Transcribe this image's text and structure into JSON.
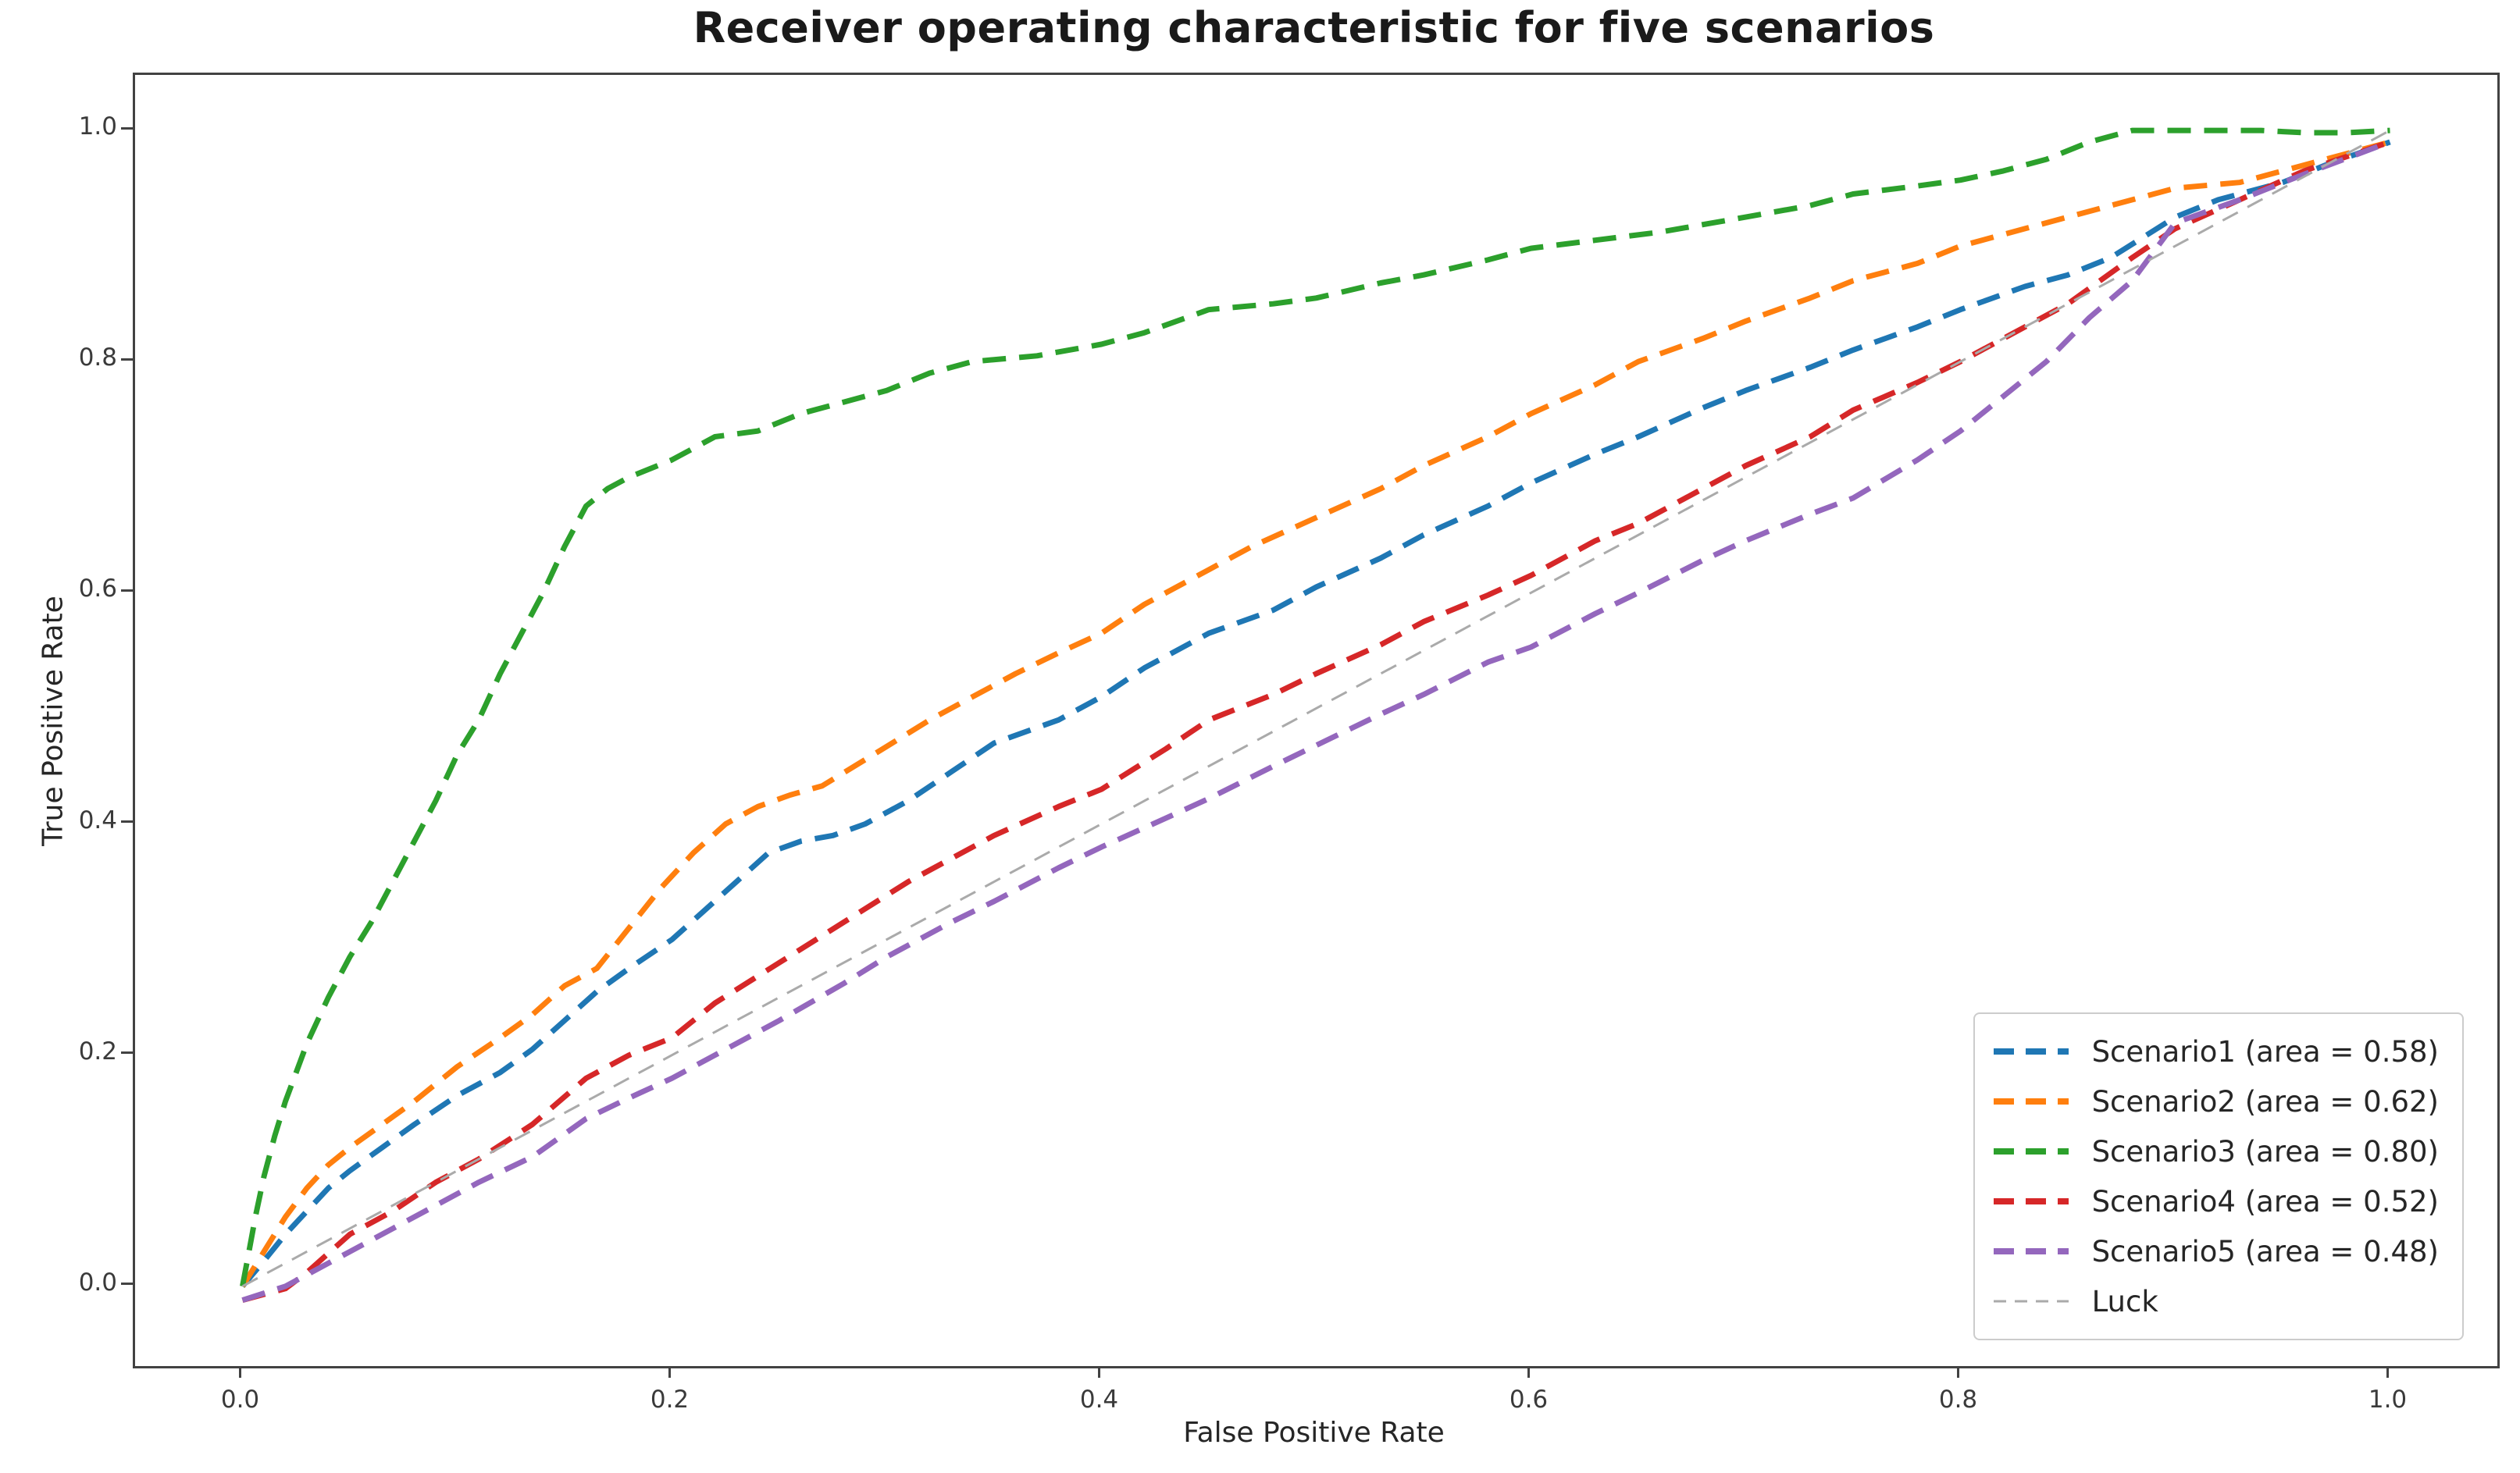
{
  "chart_data": {
    "type": "line",
    "title": "Receiver operating characteristic for five scenarios",
    "xlabel": "False Positive Rate",
    "ylabel": "True Positive Rate",
    "xlim": [
      -0.05,
      1.05
    ],
    "ylim": [
      -0.069,
      1.048
    ],
    "grid": false,
    "legend_position": "lower right",
    "x_ticks": {
      "values": [
        0.0,
        0.2,
        0.4,
        0.6,
        0.8,
        1.0
      ],
      "labels": [
        "0.0",
        "0.2",
        "0.4",
        "0.6",
        "0.8",
        "1.0"
      ]
    },
    "y_ticks": {
      "values": [
        0.0,
        0.2,
        0.4,
        0.6,
        0.8,
        1.0
      ],
      "labels": [
        "0.0",
        "0.2",
        "0.4",
        "0.6",
        "0.8",
        "1.0"
      ]
    },
    "series": [
      {
        "name": "Scenario1 (area = 0.58)",
        "area": 0.58,
        "color": "#1f77b4",
        "line_width": 7,
        "dash": "30 17",
        "sample_dash": "26 15",
        "sample_width": 8,
        "points": [
          [
            0,
            0
          ],
          [
            0.01,
            0.022
          ],
          [
            0.02,
            0.045
          ],
          [
            0.03,
            0.065
          ],
          [
            0.04,
            0.085
          ],
          [
            0.05,
            0.1
          ],
          [
            0.065,
            0.12
          ],
          [
            0.08,
            0.14
          ],
          [
            0.1,
            0.165
          ],
          [
            0.12,
            0.185
          ],
          [
            0.135,
            0.205
          ],
          [
            0.15,
            0.23
          ],
          [
            0.165,
            0.255
          ],
          [
            0.18,
            0.275
          ],
          [
            0.2,
            0.3
          ],
          [
            0.215,
            0.325
          ],
          [
            0.23,
            0.35
          ],
          [
            0.245,
            0.375
          ],
          [
            0.26,
            0.385
          ],
          [
            0.275,
            0.39
          ],
          [
            0.29,
            0.4
          ],
          [
            0.31,
            0.42
          ],
          [
            0.33,
            0.445
          ],
          [
            0.35,
            0.47
          ],
          [
            0.38,
            0.49
          ],
          [
            0.4,
            0.51
          ],
          [
            0.42,
            0.535
          ],
          [
            0.45,
            0.565
          ],
          [
            0.48,
            0.585
          ],
          [
            0.5,
            0.605
          ],
          [
            0.53,
            0.63
          ],
          [
            0.55,
            0.65
          ],
          [
            0.58,
            0.675
          ],
          [
            0.6,
            0.695
          ],
          [
            0.63,
            0.72
          ],
          [
            0.65,
            0.735
          ],
          [
            0.68,
            0.76
          ],
          [
            0.7,
            0.775
          ],
          [
            0.73,
            0.795
          ],
          [
            0.75,
            0.81
          ],
          [
            0.78,
            0.83
          ],
          [
            0.8,
            0.845
          ],
          [
            0.83,
            0.865
          ],
          [
            0.85,
            0.875
          ],
          [
            0.87,
            0.89
          ],
          [
            0.9,
            0.925
          ],
          [
            0.92,
            0.94
          ],
          [
            0.95,
            0.955
          ],
          [
            0.97,
            0.97
          ],
          [
            1,
            0.99
          ]
        ]
      },
      {
        "name": "Scenario2 (area = 0.62)",
        "area": 0.62,
        "color": "#ff7f0e",
        "line_width": 7,
        "dash": "30 17",
        "sample_dash": "26 15",
        "sample_width": 8,
        "points": [
          [
            0,
            0
          ],
          [
            0.01,
            0.03
          ],
          [
            0.02,
            0.06
          ],
          [
            0.03,
            0.085
          ],
          [
            0.04,
            0.105
          ],
          [
            0.05,
            0.12
          ],
          [
            0.065,
            0.14
          ],
          [
            0.08,
            0.16
          ],
          [
            0.1,
            0.19
          ],
          [
            0.12,
            0.215
          ],
          [
            0.135,
            0.235
          ],
          [
            0.15,
            0.26
          ],
          [
            0.165,
            0.275
          ],
          [
            0.18,
            0.31
          ],
          [
            0.195,
            0.345
          ],
          [
            0.21,
            0.375
          ],
          [
            0.225,
            0.4
          ],
          [
            0.24,
            0.415
          ],
          [
            0.255,
            0.425
          ],
          [
            0.27,
            0.433
          ],
          [
            0.285,
            0.45
          ],
          [
            0.3,
            0.467
          ],
          [
            0.32,
            0.49
          ],
          [
            0.34,
            0.51
          ],
          [
            0.36,
            0.53
          ],
          [
            0.38,
            0.548
          ],
          [
            0.4,
            0.565
          ],
          [
            0.42,
            0.59
          ],
          [
            0.45,
            0.62
          ],
          [
            0.47,
            0.64
          ],
          [
            0.5,
            0.665
          ],
          [
            0.53,
            0.69
          ],
          [
            0.55,
            0.71
          ],
          [
            0.58,
            0.735
          ],
          [
            0.6,
            0.755
          ],
          [
            0.63,
            0.78
          ],
          [
            0.65,
            0.8
          ],
          [
            0.68,
            0.82
          ],
          [
            0.7,
            0.835
          ],
          [
            0.73,
            0.855
          ],
          [
            0.75,
            0.87
          ],
          [
            0.78,
            0.885
          ],
          [
            0.8,
            0.9
          ],
          [
            0.83,
            0.915
          ],
          [
            0.85,
            0.925
          ],
          [
            0.88,
            0.94
          ],
          [
            0.9,
            0.95
          ],
          [
            0.93,
            0.955
          ],
          [
            0.96,
            0.97
          ],
          [
            1,
            0.99
          ]
        ]
      },
      {
        "name": "Scenario3 (area = 0.80)",
        "area": 0.8,
        "color": "#2ca02c",
        "line_width": 7,
        "dash": "30 17",
        "sample_dash": "26 15",
        "sample_width": 8,
        "points": [
          [
            0,
            0
          ],
          [
            0.003,
            0.03
          ],
          [
            0.006,
            0.06
          ],
          [
            0.01,
            0.095
          ],
          [
            0.015,
            0.13
          ],
          [
            0.02,
            0.16
          ],
          [
            0.03,
            0.21
          ],
          [
            0.04,
            0.25
          ],
          [
            0.05,
            0.285
          ],
          [
            0.06,
            0.315
          ],
          [
            0.07,
            0.35
          ],
          [
            0.08,
            0.385
          ],
          [
            0.09,
            0.42
          ],
          [
            0.1,
            0.46
          ],
          [
            0.11,
            0.49
          ],
          [
            0.12,
            0.53
          ],
          [
            0.13,
            0.565
          ],
          [
            0.14,
            0.6
          ],
          [
            0.15,
            0.64
          ],
          [
            0.16,
            0.675
          ],
          [
            0.17,
            0.69
          ],
          [
            0.18,
            0.7
          ],
          [
            0.2,
            0.715
          ],
          [
            0.22,
            0.735
          ],
          [
            0.24,
            0.74
          ],
          [
            0.26,
            0.755
          ],
          [
            0.28,
            0.765
          ],
          [
            0.3,
            0.775
          ],
          [
            0.32,
            0.79
          ],
          [
            0.34,
            0.8
          ],
          [
            0.37,
            0.805
          ],
          [
            0.4,
            0.815
          ],
          [
            0.42,
            0.825
          ],
          [
            0.45,
            0.845
          ],
          [
            0.48,
            0.85
          ],
          [
            0.5,
            0.855
          ],
          [
            0.53,
            0.868
          ],
          [
            0.55,
            0.875
          ],
          [
            0.58,
            0.888
          ],
          [
            0.6,
            0.898
          ],
          [
            0.63,
            0.905
          ],
          [
            0.66,
            0.912
          ],
          [
            0.7,
            0.925
          ],
          [
            0.73,
            0.935
          ],
          [
            0.75,
            0.945
          ],
          [
            0.78,
            0.952
          ],
          [
            0.8,
            0.957
          ],
          [
            0.82,
            0.965
          ],
          [
            0.84,
            0.975
          ],
          [
            0.86,
            0.99
          ],
          [
            0.88,
            1
          ],
          [
            0.91,
            1
          ],
          [
            0.94,
            1
          ],
          [
            0.96,
            0.998
          ],
          [
            0.98,
            0.998
          ],
          [
            1,
            1
          ]
        ]
      },
      {
        "name": "Scenario4 (area = 0.52)",
        "area": 0.52,
        "color": "#d62728",
        "line_width": 7,
        "dash": "30 17",
        "sample_dash": "26 15",
        "sample_width": 8,
        "points": [
          [
            0,
            -0.012
          ],
          [
            0.02,
            -0.002
          ],
          [
            0.03,
            0.012
          ],
          [
            0.05,
            0.045
          ],
          [
            0.07,
            0.065
          ],
          [
            0.09,
            0.09
          ],
          [
            0.11,
            0.11
          ],
          [
            0.135,
            0.14
          ],
          [
            0.16,
            0.18
          ],
          [
            0.18,
            0.2
          ],
          [
            0.2,
            0.215
          ],
          [
            0.22,
            0.245
          ],
          [
            0.25,
            0.28
          ],
          [
            0.28,
            0.315
          ],
          [
            0.31,
            0.35
          ],
          [
            0.33,
            0.37
          ],
          [
            0.35,
            0.39
          ],
          [
            0.38,
            0.415
          ],
          [
            0.4,
            0.43
          ],
          [
            0.43,
            0.465
          ],
          [
            0.45,
            0.49
          ],
          [
            0.48,
            0.512
          ],
          [
            0.5,
            0.53
          ],
          [
            0.53,
            0.555
          ],
          [
            0.55,
            0.575
          ],
          [
            0.58,
            0.598
          ],
          [
            0.6,
            0.615
          ],
          [
            0.63,
            0.645
          ],
          [
            0.65,
            0.66
          ],
          [
            0.68,
            0.69
          ],
          [
            0.7,
            0.71
          ],
          [
            0.73,
            0.735
          ],
          [
            0.75,
            0.758
          ],
          [
            0.78,
            0.782
          ],
          [
            0.8,
            0.8
          ],
          [
            0.83,
            0.83
          ],
          [
            0.85,
            0.85
          ],
          [
            0.88,
            0.89
          ],
          [
            0.9,
            0.915
          ],
          [
            0.93,
            0.94
          ],
          [
            0.96,
            0.965
          ],
          [
            1,
            0.99
          ]
        ]
      },
      {
        "name": "Scenario5 (area = 0.48)",
        "area": 0.48,
        "color": "#9467bd",
        "line_width": 7,
        "dash": "30 17",
        "sample_dash": "26 15",
        "sample_width": 8,
        "points": [
          [
            0,
            -0.012
          ],
          [
            0.02,
            0
          ],
          [
            0.03,
            0.01
          ],
          [
            0.05,
            0.03
          ],
          [
            0.07,
            0.05
          ],
          [
            0.09,
            0.07
          ],
          [
            0.11,
            0.09
          ],
          [
            0.135,
            0.112
          ],
          [
            0.16,
            0.145
          ],
          [
            0.18,
            0.163
          ],
          [
            0.2,
            0.18
          ],
          [
            0.22,
            0.2
          ],
          [
            0.25,
            0.23
          ],
          [
            0.28,
            0.262
          ],
          [
            0.3,
            0.285
          ],
          [
            0.33,
            0.315
          ],
          [
            0.35,
            0.333
          ],
          [
            0.38,
            0.362
          ],
          [
            0.4,
            0.38
          ],
          [
            0.43,
            0.405
          ],
          [
            0.45,
            0.422
          ],
          [
            0.48,
            0.45
          ],
          [
            0.5,
            0.468
          ],
          [
            0.53,
            0.495
          ],
          [
            0.55,
            0.512
          ],
          [
            0.58,
            0.54
          ],
          [
            0.6,
            0.553
          ],
          [
            0.63,
            0.582
          ],
          [
            0.65,
            0.6
          ],
          [
            0.68,
            0.628
          ],
          [
            0.7,
            0.645
          ],
          [
            0.73,
            0.668
          ],
          [
            0.75,
            0.682
          ],
          [
            0.78,
            0.715
          ],
          [
            0.8,
            0.74
          ],
          [
            0.82,
            0.77
          ],
          [
            0.84,
            0.8
          ],
          [
            0.86,
            0.838
          ],
          [
            0.88,
            0.87
          ],
          [
            0.9,
            0.92
          ],
          [
            0.93,
            0.94
          ],
          [
            0.96,
            0.962
          ],
          [
            1,
            0.99
          ]
        ]
      },
      {
        "name": "Luck",
        "color": "#aaaaaa",
        "line_width": 3,
        "dash": "22 14",
        "sample_dash": "16 11",
        "sample_width": 3,
        "points": [
          [
            0,
            0
          ],
          [
            1,
            1
          ]
        ]
      }
    ]
  },
  "colors": {
    "spine": "#424242",
    "title_text": "#1a1a1a",
    "tick_text": "#3a3a3a",
    "legend_border": "#cccccc",
    "background": "#ffffff"
  }
}
